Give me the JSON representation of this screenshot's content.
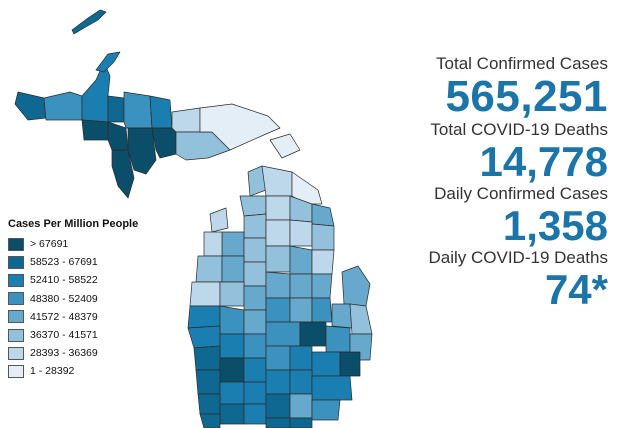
{
  "legend": {
    "title": "Cases Per Million People",
    "items": [
      {
        "label": "> 67691",
        "color": "#0b4e6a"
      },
      {
        "label": "58523 - 67691",
        "color": "#0f6891"
      },
      {
        "label": "52410 - 58522",
        "color": "#1a7fb0"
      },
      {
        "label": "48380 - 52409",
        "color": "#3b92bf"
      },
      {
        "label": "41572 - 48379",
        "color": "#66a9cc"
      },
      {
        "label": "36370 - 41571",
        "color": "#93c1db"
      },
      {
        "label": "28393 - 36369",
        "color": "#bdd8ea"
      },
      {
        "label": "1 - 28392",
        "color": "#e3eef6"
      }
    ]
  },
  "stats": {
    "total_cases_label": "Total Confirmed Cases",
    "total_cases_value": "565,251",
    "total_deaths_label": "Total COVID-19 Deaths",
    "total_deaths_value": "14,778",
    "daily_cases_label": "Daily Confirmed Cases",
    "daily_cases_value": "1,358",
    "daily_deaths_label": "Daily COVID-19 Deaths",
    "daily_deaths_value": "74*"
  },
  "colors": {
    "accent": "#1b75a9"
  }
}
